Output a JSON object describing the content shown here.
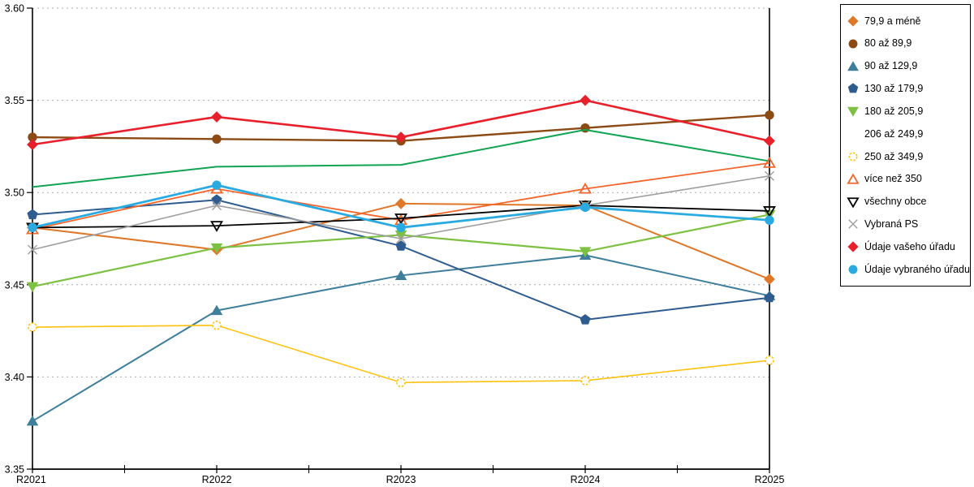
{
  "chart_data": {
    "type": "line",
    "title": "",
    "x_categories": [
      "R2021",
      "R2022",
      "R2023",
      "R2024",
      "R2025"
    ],
    "y_axis": {
      "min": 3.35,
      "max": 3.6,
      "tick_step": 0.05,
      "tick_labels": [
        "3.60",
        "3.55",
        "3.50",
        "3.45",
        "3.40",
        "3.35"
      ]
    },
    "grid": {
      "horizontal": true,
      "style": "dotted",
      "color": "#ababab"
    },
    "legend_position": "outside-top-right",
    "axis_color": "#000000",
    "series": [
      {
        "name": "79,9 a méně",
        "color": "#E0782A",
        "marker": "diamond",
        "fill": "solid",
        "values": [
          3.481,
          3.469,
          3.494,
          3.493,
          3.453
        ]
      },
      {
        "name": "80 až 89,9",
        "color": "#8C4A15",
        "marker": "circle",
        "fill": "solid",
        "values": [
          3.53,
          3.529,
          3.528,
          3.535,
          3.542
        ]
      },
      {
        "name": "90 až 129,9",
        "color": "#3F7F9B",
        "marker": "triangle-up",
        "fill": "solid",
        "values": [
          3.376,
          3.436,
          3.455,
          3.466,
          3.444
        ]
      },
      {
        "name": "130 až 179,9",
        "color": "#2F5C8F",
        "marker": "pentagon",
        "fill": "solid",
        "values": [
          3.488,
          3.496,
          3.471,
          3.431,
          3.443
        ]
      },
      {
        "name": "180 až 205,9",
        "color": "#7DC142",
        "marker": "triangle-down",
        "fill": "solid",
        "values": [
          3.449,
          3.47,
          3.477,
          3.468,
          3.488
        ]
      },
      {
        "name": "206 až 249,9",
        "color": "#12A452",
        "marker": "square",
        "fill": "open",
        "values": [
          3.503,
          3.514,
          3.515,
          3.534,
          3.517
        ]
      },
      {
        "name": "250 až 349,9",
        "color": "#FFC20E",
        "marker": "circle-dashed",
        "fill": "open",
        "values": [
          3.427,
          3.428,
          3.397,
          3.398,
          3.409
        ]
      },
      {
        "name": "více než 350",
        "color": "#F4652B",
        "marker": "triangle-up",
        "fill": "open",
        "values": [
          3.48,
          3.502,
          3.485,
          3.502,
          3.516
        ]
      },
      {
        "name": "všechny obce",
        "color": "#000000",
        "marker": "triangle-down",
        "fill": "open",
        "values": [
          3.481,
          3.482,
          3.486,
          3.493,
          3.49
        ]
      },
      {
        "name": "Vybraná PS",
        "color": "#9E9E9E",
        "marker": "x",
        "fill": "open",
        "values": [
          3.469,
          3.493,
          3.475,
          3.493,
          3.509
        ]
      },
      {
        "name": "Údaje vašeho úřadu",
        "color": "#E8202C",
        "marker": "diamond",
        "fill": "solid",
        "values": [
          3.526,
          3.541,
          3.53,
          3.55,
          3.528
        ]
      },
      {
        "name": "Údaje vybraného úřadu",
        "color": "#29ABE2",
        "marker": "circle",
        "fill": "solid",
        "values": [
          3.481,
          3.504,
          3.481,
          3.492,
          3.485
        ]
      }
    ]
  }
}
